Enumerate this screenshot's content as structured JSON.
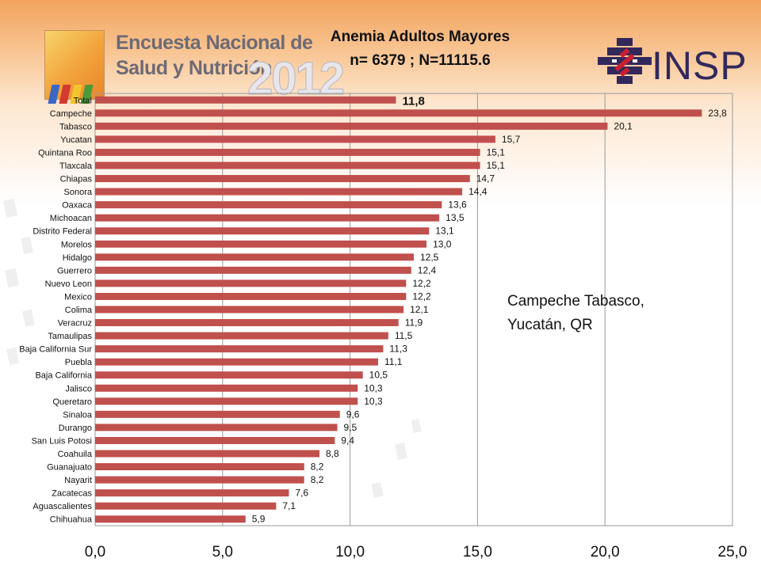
{
  "colors": {
    "bar": "#c0504d",
    "grid": "#9a9a9a",
    "title": "#111111",
    "insp": "#32285c",
    "insp_red": "#c8202f"
  },
  "logo": {
    "line1": "Encuesta Nacional de",
    "line2": "Salud y Nutrición",
    "year": "2012"
  },
  "insp_logo": {
    "text": "INSP",
    "icon": "insp-diamond-icon"
  },
  "annotation": "Campeche Tabasco,\nYucatán, QR",
  "chart_data": {
    "type": "bar",
    "orientation": "horizontal",
    "title": "Anemia Adultos Mayores",
    "subtitle": "n= 6379 ; N=11115.6",
    "xlabel": "",
    "ylabel": "",
    "xlim": [
      0,
      25
    ],
    "x_ticks": [
      "0,0",
      "5,0",
      "10,0",
      "15,0",
      "20,0",
      "25,0"
    ],
    "grid": true,
    "categories": [
      "Total",
      "Campeche",
      "Tabasco",
      "Yucatan",
      "Quintana Roo",
      "Tlaxcala",
      "Chiapas",
      "Sonora",
      "Oaxaca",
      "Michoacan",
      "Distrito Federal",
      "Morelos",
      "Hidalgo",
      "Guerrero",
      "Nuevo Leon",
      "Mexico",
      "Colima",
      "Veracruz",
      "Tamaulipas",
      "Baja California Sur",
      "Puebla",
      "Baja California",
      "Jalisco",
      "Queretaro",
      "Sinaloa",
      "Durango",
      "San Luis Potosi",
      "Coahuila",
      "Guanajuato",
      "Nayarit",
      "Zacatecas",
      "Aguascalientes",
      "Chihuahua"
    ],
    "values": [
      11.8,
      23.8,
      20.1,
      15.7,
      15.1,
      15.1,
      14.7,
      14.4,
      13.6,
      13.5,
      13.1,
      13.0,
      12.5,
      12.4,
      12.2,
      12.2,
      12.1,
      11.9,
      11.5,
      11.3,
      11.1,
      10.5,
      10.3,
      10.3,
      9.6,
      9.5,
      9.4,
      8.8,
      8.2,
      8.2,
      7.6,
      7.1,
      5.9
    ],
    "value_labels": [
      "11,8",
      "23,8",
      "20,1",
      "15,7",
      "15,1",
      "15,1",
      "14,7",
      "14,4",
      "13,6",
      "13,5",
      "13,1",
      "13,0",
      "12,5",
      "12,4",
      "12,2",
      "12,2",
      "12,1",
      "11,9",
      "11,5",
      "11,3",
      "11,1",
      "10,5",
      "10,3",
      "10,3",
      "9,6",
      "9,5",
      "9,4",
      "8,8",
      "8,2",
      "8,2",
      "7,6",
      "7,1",
      "5,9"
    ]
  }
}
